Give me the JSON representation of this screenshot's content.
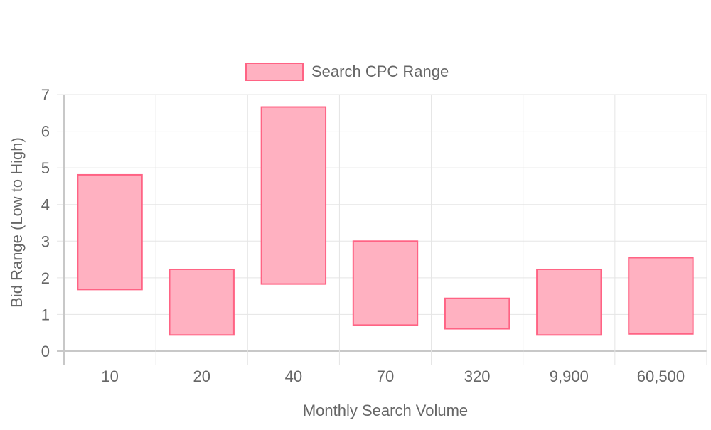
{
  "chart_data": {
    "type": "bar",
    "subtype": "floating-range",
    "categories": [
      "10",
      "20",
      "40",
      "70",
      "320",
      "9,900",
      "60,500"
    ],
    "series": [
      {
        "name": "Search CPC Range",
        "ranges": [
          [
            1.68,
            4.81
          ],
          [
            0.44,
            2.23
          ],
          [
            1.83,
            6.66
          ],
          [
            0.71,
            3.0
          ],
          [
            0.61,
            1.44
          ],
          [
            0.44,
            2.23
          ],
          [
            0.47,
            2.55
          ]
        ]
      }
    ],
    "xlabel": "Monthly Search Volume",
    "ylabel": "Bid Range (Low to High)",
    "ylim": [
      0,
      7
    ],
    "yticks": [
      "0",
      "1",
      "2",
      "3",
      "4",
      "5",
      "6",
      "7"
    ],
    "grid": true,
    "legend_position": "top",
    "colors": {
      "bar_fill": "#ffb1c1",
      "bar_stroke": "#ff6384",
      "grid": "#e5e5e5",
      "axis": "#c8c8c8",
      "text": "#666666"
    }
  }
}
